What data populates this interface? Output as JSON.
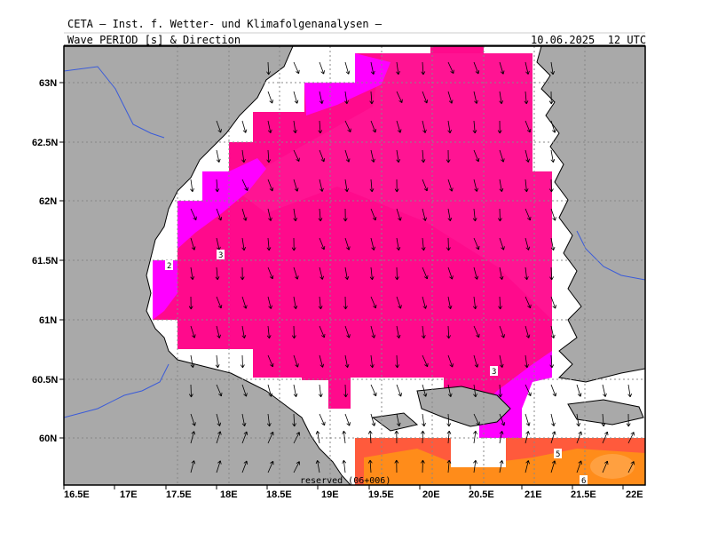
{
  "header": {
    "org": "CETA — Inst. f. Wetter- und Klimafolgenanalysen —",
    "product": "Wave_PERIOD [s] & Direction",
    "valid": "10.06.2025  12 UTC"
  },
  "axes": {
    "lon_labels": [
      "16.5E",
      "17E",
      "17.5E",
      "18E",
      "18.5E",
      "19E",
      "19.5E",
      "20E",
      "20.5E",
      "21E",
      "21.5E",
      "22E"
    ],
    "lat_labels": [
      "63N",
      "62.5N",
      "62N",
      "61.5N",
      "61N",
      "60.5N",
      "60N"
    ]
  },
  "contour_labels": [
    "2",
    "3",
    "3",
    "5",
    "6"
  ],
  "footer": "reserved (06+006)",
  "colors": {
    "land": "#a9a9a9",
    "water_nodata": "#ffffff",
    "period_2_3": "#ff00ff",
    "period_3_4": "#ff0a8c",
    "period_4_5": "#ff1493",
    "period_5_6": "#ff5a3c",
    "period_6_7": "#ff8c1a",
    "border": "#3a5bd9"
  },
  "icons": {
    "arrow": "wave-direction-arrow-icon"
  }
}
